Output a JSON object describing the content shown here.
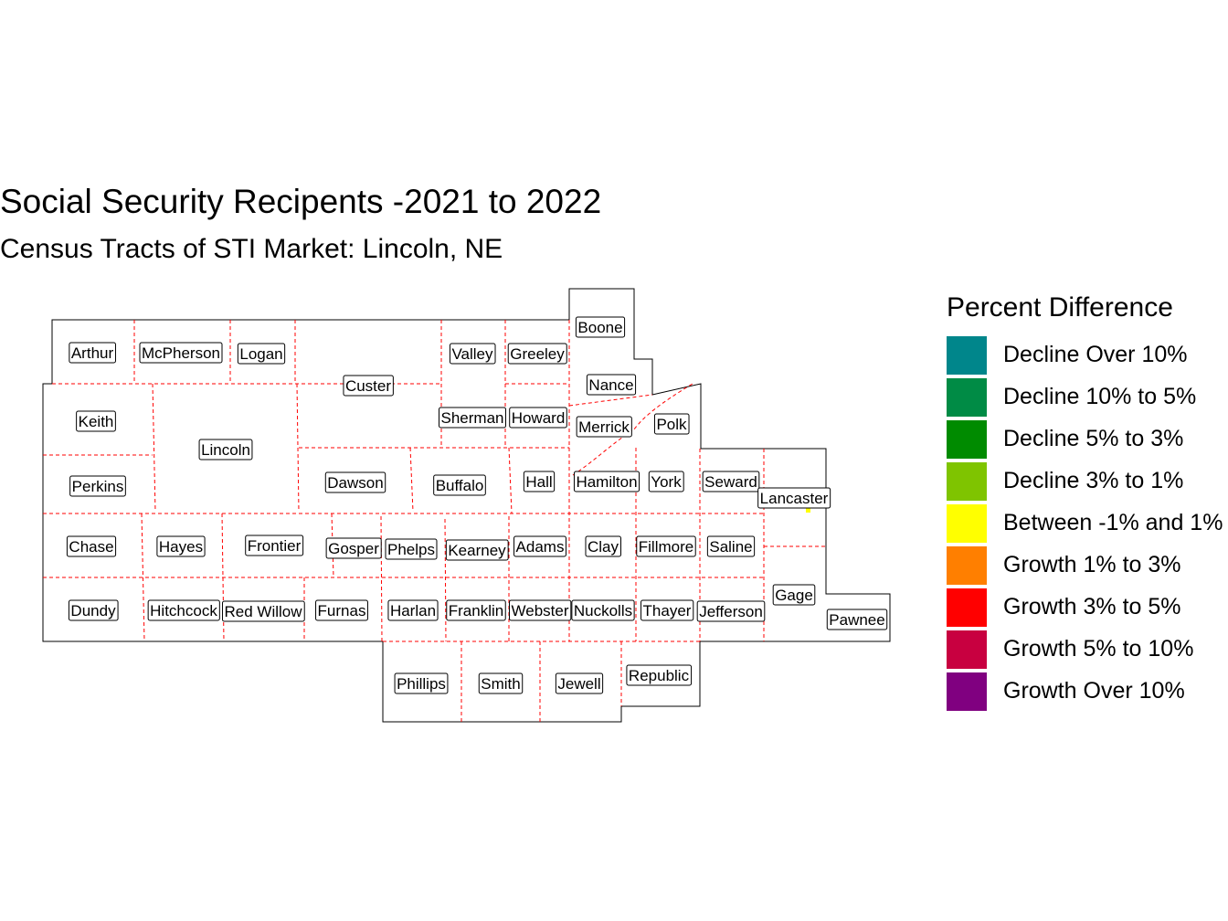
{
  "title": "Social Security Recipents -2021 to 2022",
  "subtitle": "Census Tracts of STI Market: Lincoln, NE",
  "legend": {
    "title": "Percent Difference",
    "items": [
      {
        "label": "Decline Over 10%",
        "color": "#00868B"
      },
      {
        "label": "Decline 10% to 5%",
        "color": "#008B45"
      },
      {
        "label": "Decline 5% to 3%",
        "color": "#008B00"
      },
      {
        "label": "Decline 3% to 1%",
        "color": "#7FC400"
      },
      {
        "label": "Between -1% and 1%",
        "color": "#FFFF00"
      },
      {
        "label": "Growth 1% to 3%",
        "color": "#FF7F00"
      },
      {
        "label": "Growth 3% to 5%",
        "color": "#FF0000"
      },
      {
        "label": "Growth 5% to 10%",
        "color": "#C80040"
      },
      {
        "label": "Growth Over 10%",
        "color": "#800080"
      }
    ]
  },
  "counties": [
    "Arthur",
    "McPherson",
    "Logan",
    "Custer",
    "Valley",
    "Greeley",
    "Boone",
    "Nance",
    "Keith",
    "Lincoln",
    "Sherman",
    "Howard",
    "Merrick",
    "Polk",
    "Perkins",
    "Dawson",
    "Buffalo",
    "Hall",
    "Hamilton",
    "York",
    "Seward",
    "Lancaster",
    "Chase",
    "Hayes",
    "Frontier",
    "Gosper",
    "Phelps",
    "Kearney",
    "Adams",
    "Clay",
    "Fillmore",
    "Saline",
    "Dundy",
    "Hitchcock",
    "Red Willow",
    "Furnas",
    "Harlan",
    "Franklin",
    "Webster",
    "Nuckolls",
    "Thayer",
    "Jefferson",
    "Gage",
    "Pawnee",
    "Phillips",
    "Smith",
    "Jewell",
    "Republic"
  ],
  "colors": {
    "outline": "#000000",
    "tract_border": "#FF0000"
  }
}
